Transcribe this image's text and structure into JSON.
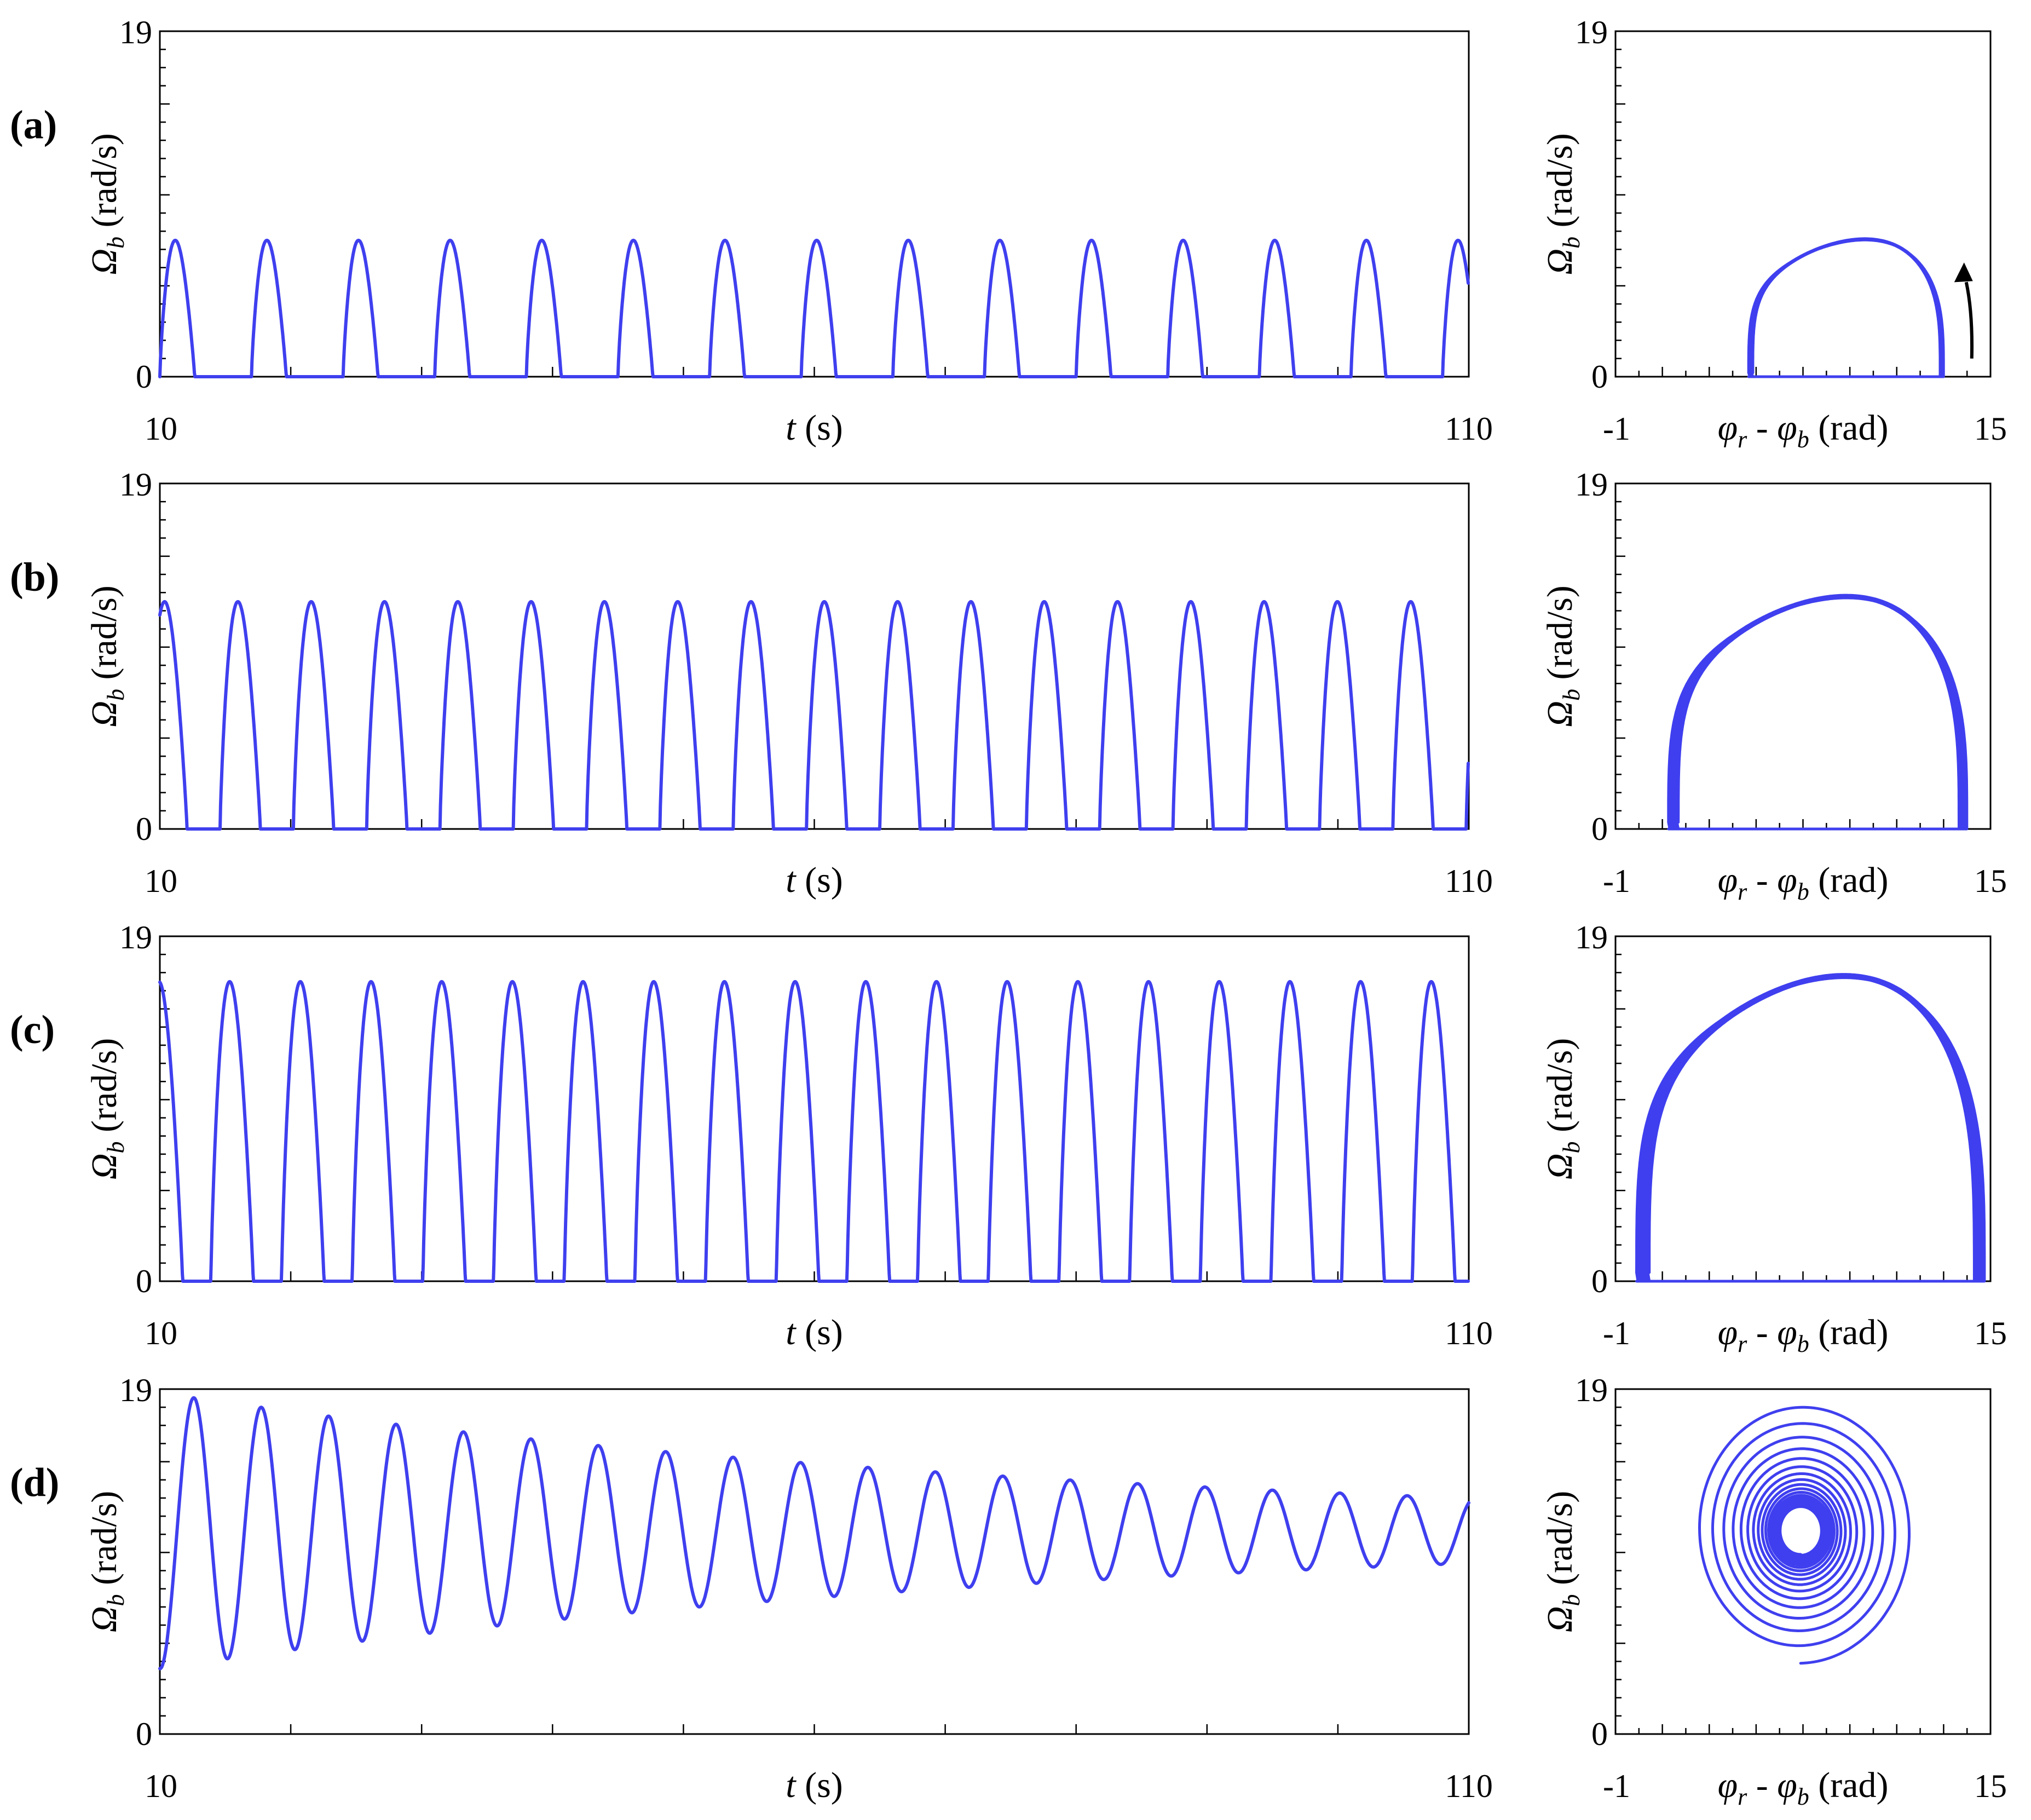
{
  "colors": {
    "series": "#3f3fef",
    "axes": "#000000",
    "background": "#ffffff"
  },
  "annotation": {
    "icon": "arrow-up-icon"
  },
  "chart_data": [
    {
      "panel": "(a)",
      "kind": "time",
      "type": "line",
      "xlim": [
        10,
        110
      ],
      "ylim": [
        0,
        19
      ],
      "xticks": [
        "10",
        "110"
      ],
      "yticks": [
        "0",
        "19"
      ],
      "xlabel": {
        "italic": "t",
        "rest": " (s)"
      },
      "ylabel": {
        "italic": "Ω",
        "sub": "b",
        "rest": " (rad/s)"
      },
      "period": 7.0,
      "phase": 10.0,
      "peak_amplitude": 7.5,
      "peak_fraction": 0.38,
      "decay": 0,
      "offset": 0,
      "grid": false,
      "legend": "none"
    },
    {
      "panel": "(a)",
      "kind": "phase",
      "type": "line",
      "xlim": [
        -1,
        15
      ],
      "ylim": [
        0,
        19
      ],
      "xticks": [
        "-1",
        "15"
      ],
      "yticks": [
        "0",
        "19"
      ],
      "xlabel": {
        "italic1": "φ",
        "sub1": "r",
        "mid": " - ",
        "italic2": "φ",
        "sub2": "b",
        "rest": " (rad)"
      },
      "ylabel": {
        "italic": "Ω",
        "sub": "b",
        "rest": " (rad/s)"
      },
      "orbit": {
        "x_left": 4.8,
        "x_right": 12.9,
        "x_peak": 9.0,
        "y_peak": 7.5,
        "loops": 4
      },
      "arrow": true,
      "grid": false,
      "legend": "none"
    },
    {
      "panel": "(b)",
      "kind": "time",
      "type": "line",
      "xlim": [
        10,
        110
      ],
      "ylim": [
        0,
        19
      ],
      "xticks": [
        "10",
        "110"
      ],
      "yticks": [
        "0",
        "19"
      ],
      "xlabel": {
        "italic": "t",
        "rest": " (s)"
      },
      "ylabel": {
        "italic": "Ω",
        "sub": "b",
        "rest": " (rad/s)"
      },
      "period": 5.6,
      "phase": 9.0,
      "peak_amplitude": 12.5,
      "peak_fraction": 0.55,
      "decay": 0,
      "offset": 0,
      "grid": false,
      "legend": "none"
    },
    {
      "panel": "(b)",
      "kind": "phase",
      "type": "line",
      "xlim": [
        -1,
        15
      ],
      "ylim": [
        0,
        19
      ],
      "xticks": [
        "-1",
        "15"
      ],
      "yticks": [
        "0",
        "19"
      ],
      "xlabel": {
        "italic1": "φ",
        "sub1": "r",
        "mid": " - ",
        "italic2": "φ",
        "sub2": "b",
        "rest": " (rad)"
      },
      "ylabel": {
        "italic": "Ω",
        "sub": "b",
        "rest": " (rad/s)"
      },
      "orbit": {
        "x_left": 1.5,
        "x_right": 13.8,
        "x_peak": 8.0,
        "y_peak": 12.7,
        "loops": 8
      },
      "arrow": false,
      "grid": false,
      "legend": "none"
    },
    {
      "panel": "(c)",
      "kind": "time",
      "type": "line",
      "xlim": [
        10,
        110
      ],
      "ylim": [
        0,
        19
      ],
      "xticks": [
        "10",
        "110"
      ],
      "yticks": [
        "0",
        "19"
      ],
      "xlabel": {
        "italic": "t",
        "rest": " (s)"
      },
      "ylabel": {
        "italic": "Ω",
        "sub": "b",
        "rest": " (rad/s)"
      },
      "period": 5.4,
      "phase": 8.5,
      "peak_amplitude": 16.5,
      "peak_fraction": 0.6,
      "decay": 0,
      "offset": 0,
      "grid": false,
      "legend": "none"
    },
    {
      "panel": "(c)",
      "kind": "phase",
      "type": "line",
      "xlim": [
        -1,
        15
      ],
      "ylim": [
        0,
        19
      ],
      "xticks": [
        "-1",
        "15"
      ],
      "yticks": [
        "0",
        "19"
      ],
      "xlabel": {
        "italic1": "φ",
        "sub1": "r",
        "mid": " - ",
        "italic2": "φ",
        "sub2": "b",
        "rest": " (rad)"
      },
      "ylabel": {
        "italic": "Ω",
        "sub": "b",
        "rest": " (rad/s)"
      },
      "orbit": {
        "x_left": 0.2,
        "x_right": 14.5,
        "x_peak": 8.0,
        "y_peak": 16.7,
        "loops": 10
      },
      "arrow": false,
      "grid": false,
      "legend": "none"
    },
    {
      "panel": "(d)",
      "kind": "time",
      "type": "line",
      "xlim": [
        10,
        110
      ],
      "ylim": [
        0,
        19
      ],
      "xticks": [
        "10",
        "110"
      ],
      "yticks": [
        "0",
        "19"
      ],
      "xlabel": {
        "italic": "t",
        "rest": " (s)"
      },
      "ylabel": {
        "italic": "Ω",
        "sub": "b",
        "rest": " (rad/s)"
      },
      "damped": {
        "center": 11.2,
        "amp0": 7.6,
        "amp_end": 1.8,
        "period": 5.15,
        "first_peak_t": 12.6,
        "peak_value": 18.8,
        "start_value": 4.3
      },
      "grid": false,
      "legend": "none"
    },
    {
      "panel": "(d)",
      "kind": "phase",
      "type": "line",
      "xlim": [
        -1,
        15
      ],
      "ylim": [
        0,
        19
      ],
      "xticks": [
        "-1",
        "15"
      ],
      "yticks": [
        "0",
        "19"
      ],
      "xlabel": {
        "italic1": "φ",
        "sub1": "r",
        "mid": " - ",
        "italic2": "φ",
        "sub2": "b",
        "rest": " (rad)"
      },
      "ylabel": {
        "italic": "Ω",
        "sub": "b",
        "rest": " (rad/s)"
      },
      "spiral": {
        "cx": 6.9,
        "cy": 11.2,
        "r0x": 4.8,
        "r0y": 7.3,
        "r_inner": 0.7,
        "turns": 19,
        "start_x": 5.9,
        "start_y": 4.4
      },
      "grid": false,
      "legend": "none"
    }
  ]
}
